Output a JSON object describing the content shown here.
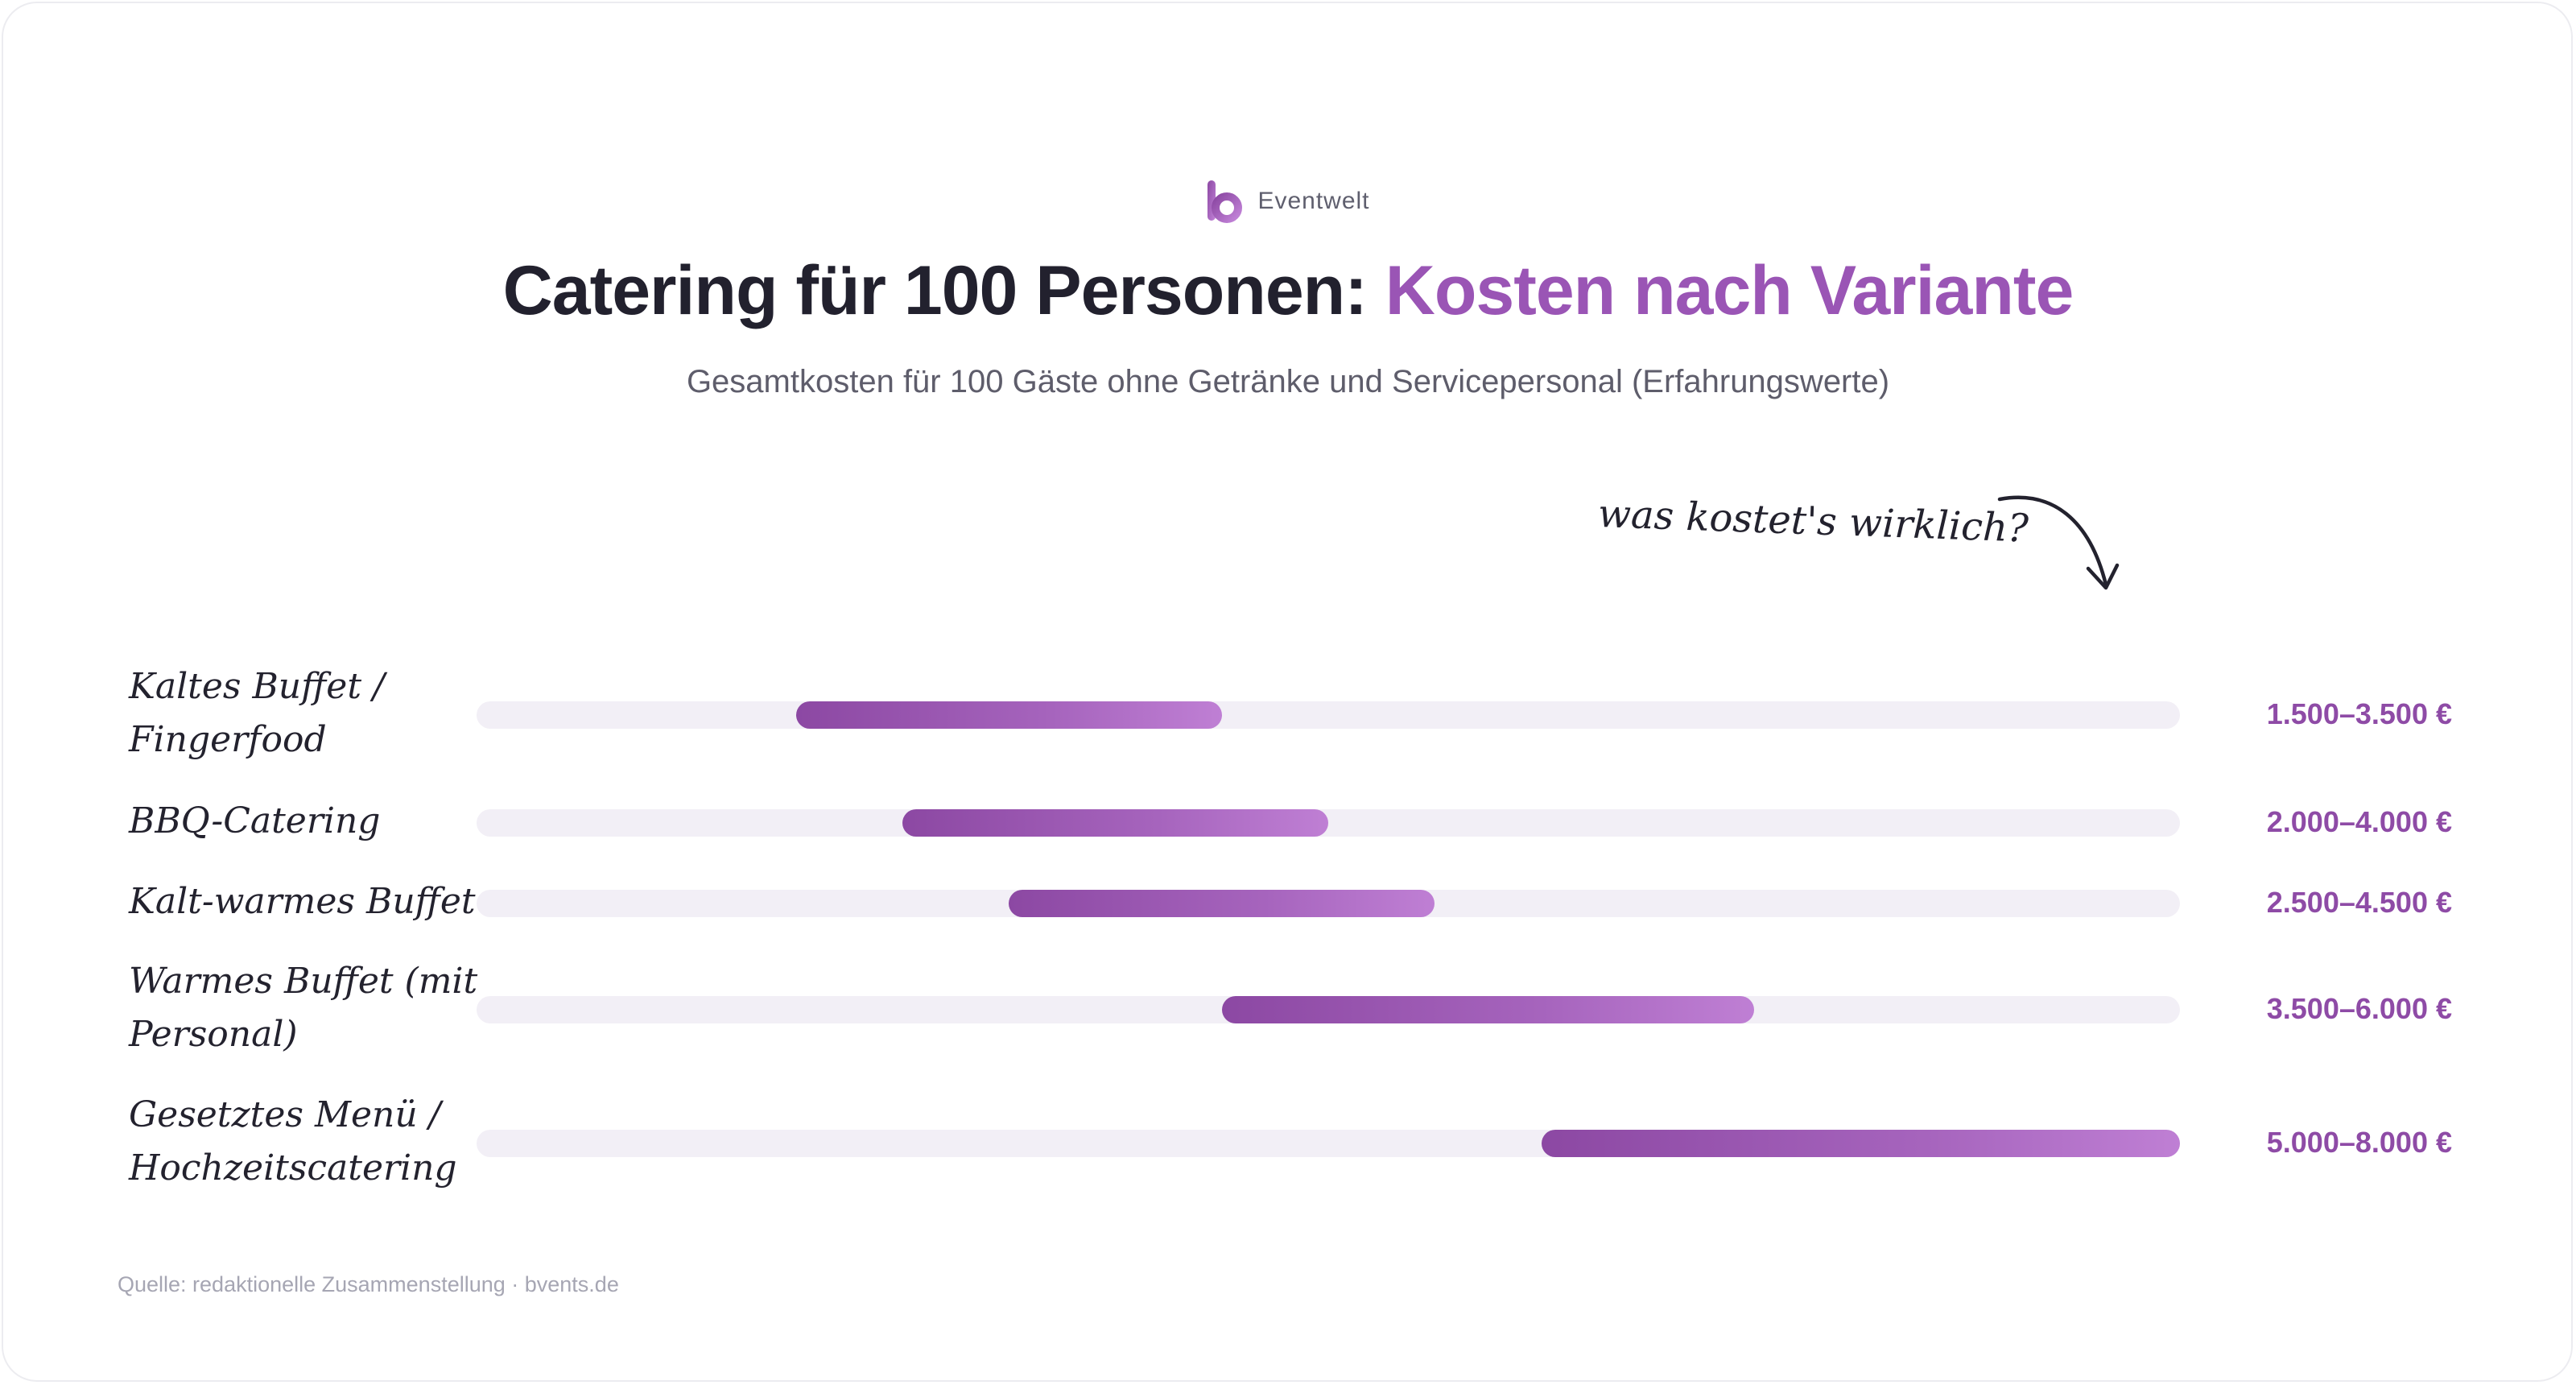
{
  "brand": {
    "name": "Eventwelt",
    "logo_icon": "b-logo-icon",
    "color": "#9a55b5"
  },
  "annotation": {
    "text": "was kostet's wirklich?",
    "icon": "curved-arrow-icon"
  },
  "source": "Quelle: redaktionelle Zusammenstellung · bvents.de",
  "colors": {
    "accent": "#9a55b5",
    "track": "#f2eff6",
    "value_text": "#8e4ba6",
    "title_text": "#22212e"
  },
  "chart_data": {
    "type": "bar",
    "title": "Catering für 100 Personen:",
    "title_accent": "Kosten nach Variante",
    "subtitle": "Gesamtkosten für 100 Gäste ohne Getränke und Servicepersonal (Erfahrungswerte)",
    "xlabel": "",
    "ylabel": "",
    "xlim": [
      0,
      8000
    ],
    "unit": "€",
    "grid": false,
    "categories": [
      [
        "Kaltes Buffet /",
        "Fingerfood"
      ],
      [
        "BBQ-Catering"
      ],
      [
        "Kalt-warmes Buffet"
      ],
      [
        "Warmes Buffet (mit",
        "Personal)"
      ],
      [
        "Gesetztes Menü /",
        "Hochzeitscatering"
      ]
    ],
    "ranges": [
      {
        "min": 1500,
        "max": 3500,
        "label": "1.500–3.500 €"
      },
      {
        "min": 2000,
        "max": 4000,
        "label": "2.000–4.000 €"
      },
      {
        "min": 2500,
        "max": 4500,
        "label": "2.500–4.500 €"
      },
      {
        "min": 3500,
        "max": 6000,
        "label": "3.500–6.000 €"
      },
      {
        "min": 5000,
        "max": 8000,
        "label": "5.000–8.000 €"
      }
    ]
  }
}
